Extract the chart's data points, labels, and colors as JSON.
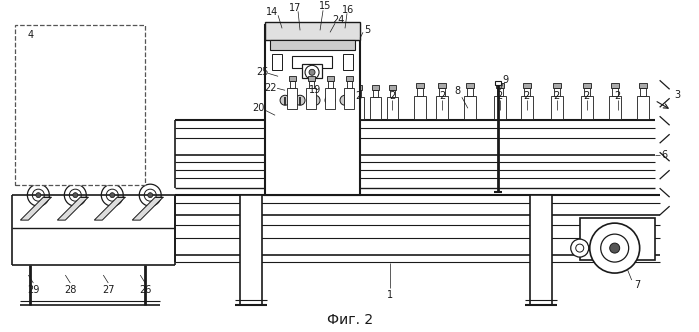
{
  "caption": "Фиг. 2",
  "bg_color": "#ffffff",
  "line_color": "#1a1a1a",
  "gray": "#888888",
  "lbl_fs": 7,
  "cap_fs": 10
}
